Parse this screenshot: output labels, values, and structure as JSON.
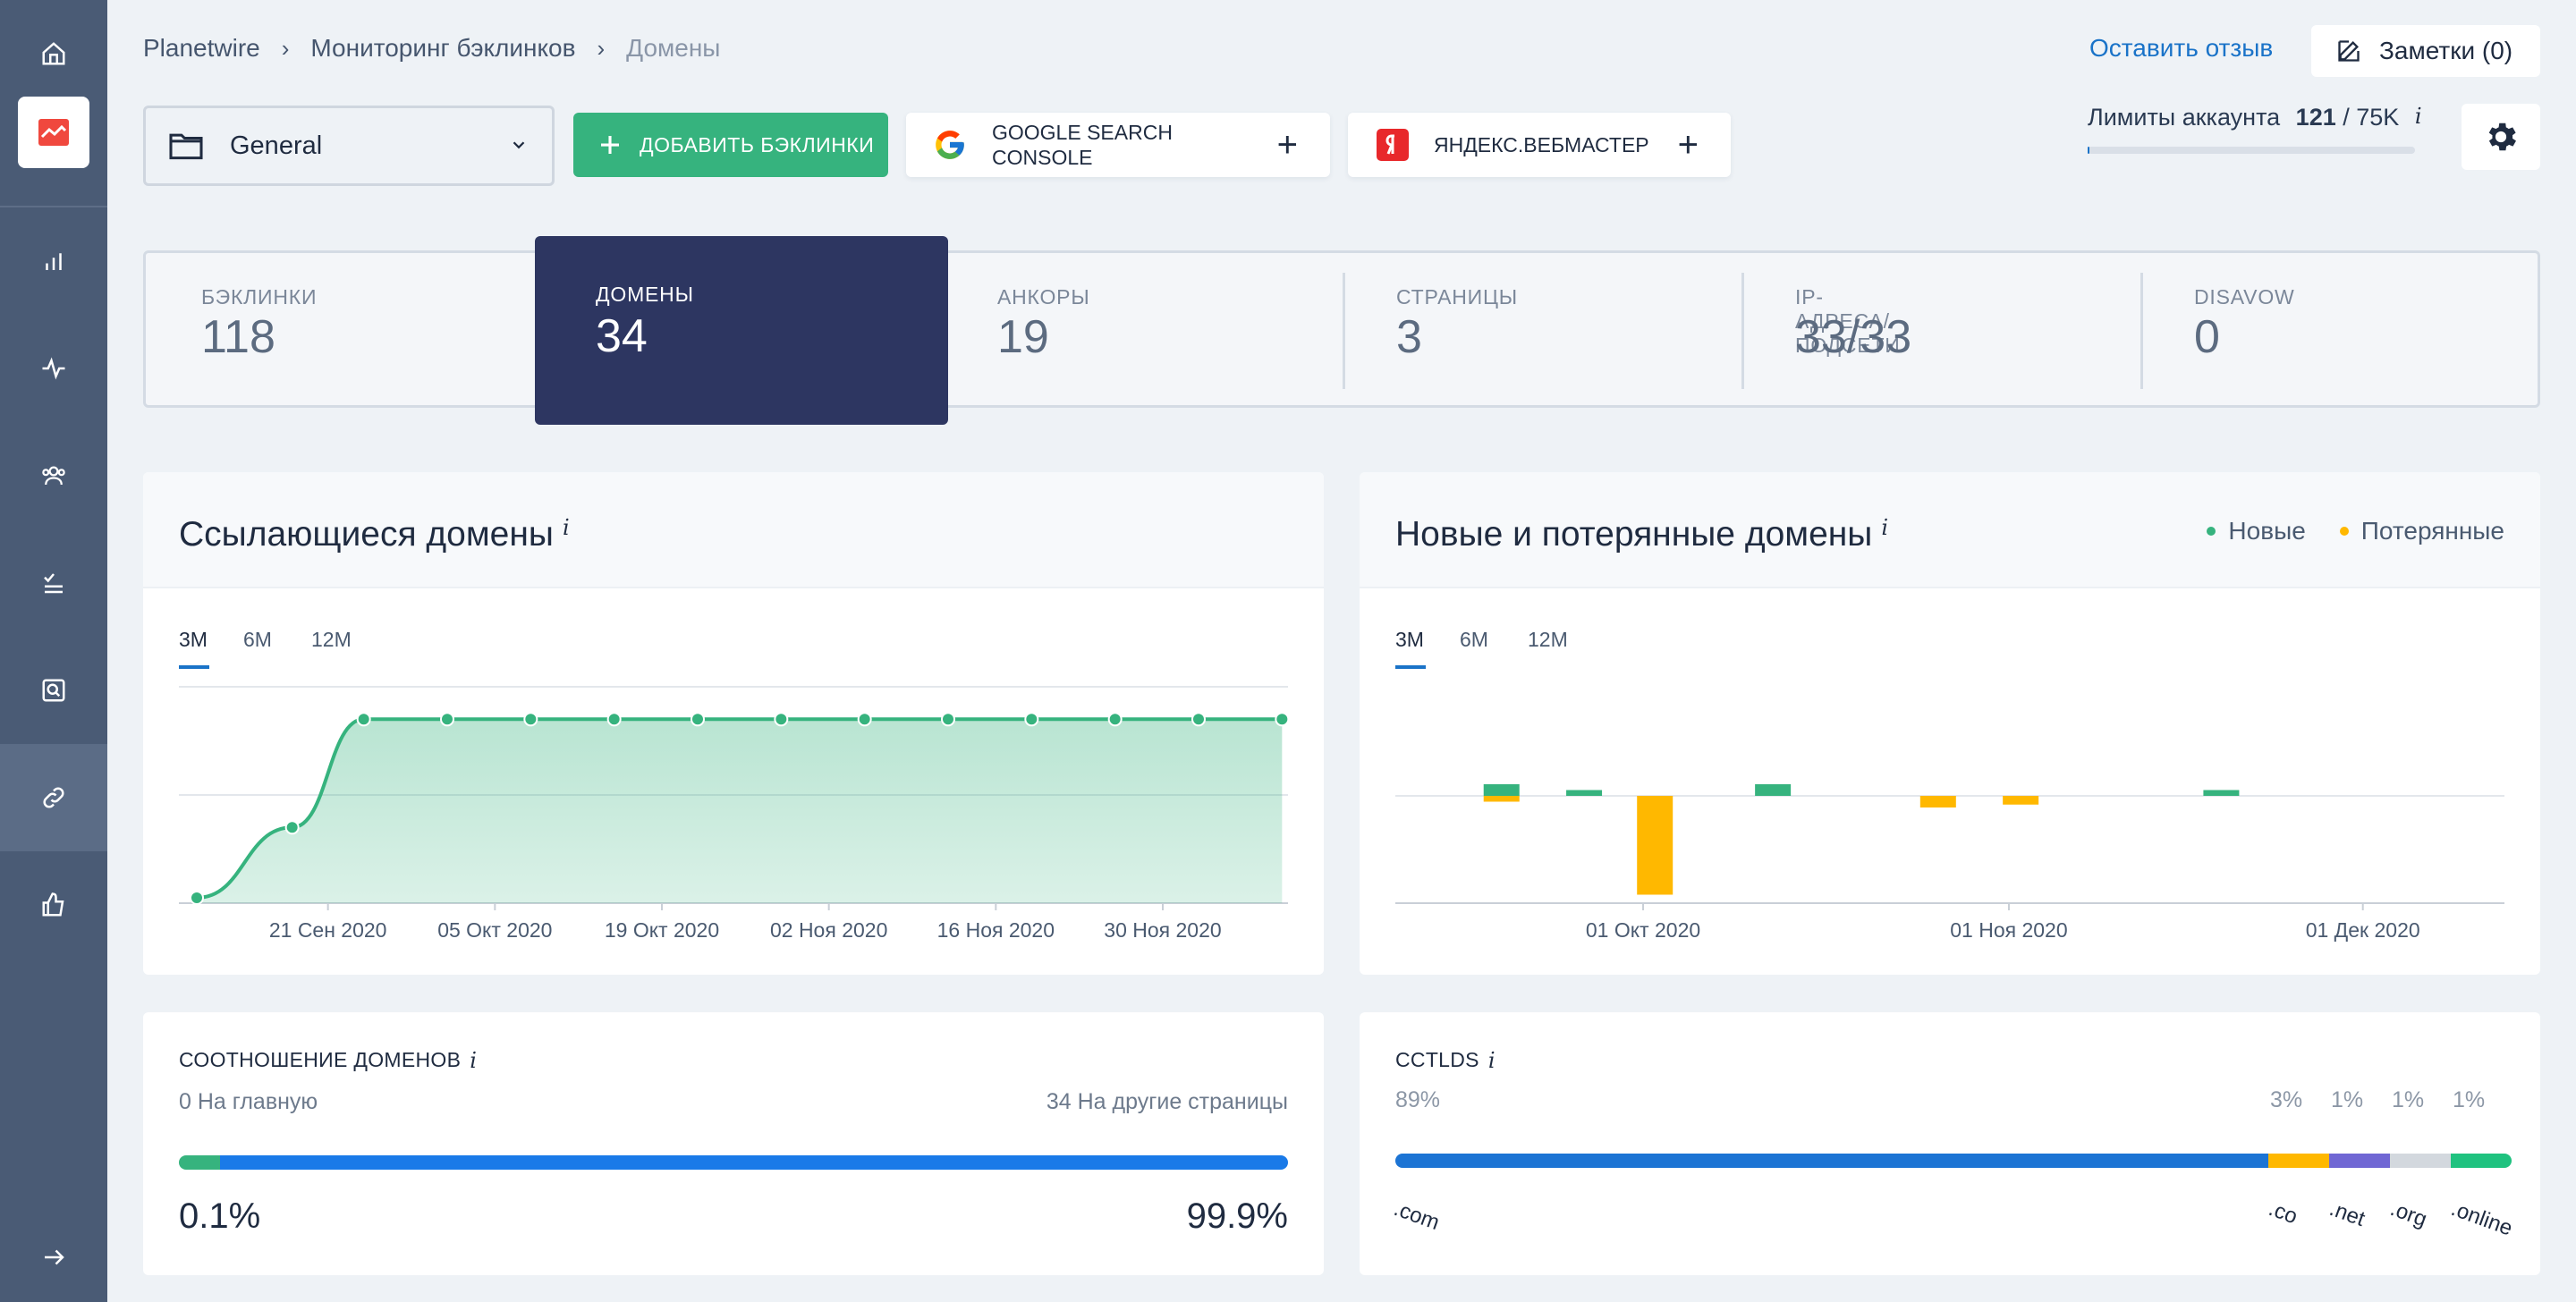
{
  "sidebar": {
    "items": [
      {
        "icon": "home-icon"
      },
      {
        "icon": "logo-icon"
      },
      {
        "icon": "bar-chart-icon"
      },
      {
        "icon": "pulse-icon"
      },
      {
        "icon": "users-icon"
      },
      {
        "icon": "checklist-icon"
      },
      {
        "icon": "search-page-icon"
      },
      {
        "icon": "link-icon"
      },
      {
        "icon": "thumbs-up-icon"
      },
      {
        "icon": "arrow-right-icon"
      }
    ],
    "active": "link-icon"
  },
  "breadcrumb": [
    "Planetwire",
    "Мониторинг бэклинков",
    "Домены"
  ],
  "header": {
    "feedback": "Оставить отзыв",
    "notes": "Заметки (0)",
    "folder": "General",
    "add_button": "ДОБАВИТЬ БЭКЛИНКИ",
    "google_line1": "GOOGLE SEARCH",
    "google_line2": "CONSOLE",
    "yandex": "ЯНДЕКС.ВЕБМАСТЕР",
    "plus": "+",
    "limits_label": "Лимиты аккаунта",
    "limits_used": "121",
    "limits_total": "/ 75K",
    "limits_fraction": 0.0016
  },
  "stats": [
    {
      "label": "БЭКЛИНКИ",
      "value": "118"
    },
    {
      "label": "ДОМЕНЫ",
      "value": "34"
    },
    {
      "label": "АНКОРЫ",
      "value": "19"
    },
    {
      "label": "СТРАНИЦЫ",
      "value": "3"
    },
    {
      "label": "IP-АДРЕСА/ПОДСЕТИ",
      "value": "33/33"
    },
    {
      "label": "DISAVOW",
      "value": "0"
    }
  ],
  "referring": {
    "title": "Ссылающиеся домены",
    "info": "i",
    "tabs": [
      "3M",
      "6M",
      "12M"
    ],
    "active_tab": "3M"
  },
  "newlost": {
    "title": "Новые и потерянные домены",
    "info": "i",
    "legend_new": "Новые",
    "legend_lost": "Потерянные",
    "tabs": [
      "3M",
      "6M",
      "12M"
    ],
    "active_tab": "3M"
  },
  "chart_data": [
    {
      "type": "area",
      "x_ticks": [
        "21 Сен 2020",
        "05 Окт 2020",
        "19 Окт 2020",
        "02 Ноя 2020",
        "16 Ноя 2020",
        "30 Ноя 2020"
      ],
      "x": [
        "2020-09-10",
        "2020-09-18",
        "2020-09-24",
        "2020-10-01",
        "2020-10-08",
        "2020-10-15",
        "2020-10-22",
        "2020-10-29",
        "2020-11-05",
        "2020-11-12",
        "2020-11-19",
        "2020-11-26",
        "2020-12-03",
        "2020-12-10"
      ],
      "values": [
        1,
        14,
        34,
        34,
        34,
        34,
        34,
        34,
        34,
        34,
        34,
        34,
        34,
        34
      ],
      "ylim": [
        0,
        40
      ],
      "grid": true,
      "color": "#36b37e"
    },
    {
      "type": "bar",
      "x_ticks": [
        "01 Окт 2020",
        "01 Ноя 2020",
        "01 Дек 2020"
      ],
      "series": [
        {
          "name": "Новые",
          "color": "#36b37e",
          "points": [
            [
              "2020-09-19",
              2
            ],
            [
              "2020-09-26",
              1
            ],
            [
              "2020-10-12",
              2
            ],
            [
              "2020-11-19",
              1
            ]
          ]
        },
        {
          "name": "Потерянные",
          "color": "#ffb800",
          "points": [
            [
              "2020-09-19",
              -1
            ],
            [
              "2020-10-02",
              -17
            ],
            [
              "2020-10-26",
              -2
            ],
            [
              "2020-11-02",
              -1.5
            ]
          ]
        }
      ],
      "ylim": [
        -18,
        2
      ],
      "grid": true
    }
  ],
  "ratio": {
    "title": "СООТНОШЕНИЕ ДОМЕНОВ",
    "info": "i",
    "left_label": "0 На главную",
    "right_label": "34 На другие страницы",
    "left_pct": "0.1%",
    "right_pct": "99.9%",
    "left_fraction": 0.001,
    "colors": {
      "home": "#36b37e",
      "other": "#1a7ae8"
    }
  },
  "cctlds": {
    "title": "CCTLDS",
    "info": "i",
    "items": [
      {
        "tld": ".com",
        "pct": "89%",
        "color": "#1c74d4",
        "share": 0.89
      },
      {
        "tld": ".co",
        "pct": "3%",
        "color": "#ffb800",
        "share": 0.03
      },
      {
        "tld": ".net",
        "pct": "1%",
        "color": "#7067d4",
        "share": 0.01
      },
      {
        "tld": ".org",
        "pct": "1%",
        "color": "#d3d8de",
        "share": 0.01
      },
      {
        "tld": ".online",
        "pct": "1%",
        "color": "#1fc27f",
        "share": 0.01
      }
    ]
  }
}
